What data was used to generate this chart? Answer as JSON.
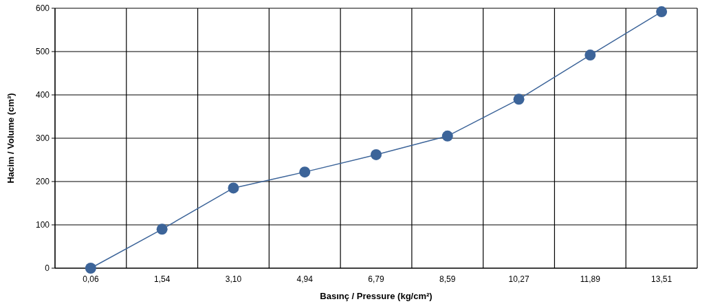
{
  "chart_data": {
    "type": "line",
    "xlabel": "Basınç / Pressure (kg/cm²)",
    "ylabel": "Hacim / Volume (cm³)",
    "categories": [
      "0,06",
      "1,54",
      "3,10",
      "4,94",
      "6,79",
      "8,59",
      "10,27",
      "11,89",
      "13,51"
    ],
    "series": [
      {
        "color": "#3c6499",
        "values": [
          0,
          90,
          185,
          222,
          262,
          305,
          390,
          492,
          592
        ]
      }
    ],
    "ylim": [
      0,
      600
    ],
    "yticks": [
      0,
      100,
      200,
      300,
      400,
      500,
      600
    ],
    "grid": true,
    "marker": "circle",
    "line_style": "solid"
  }
}
